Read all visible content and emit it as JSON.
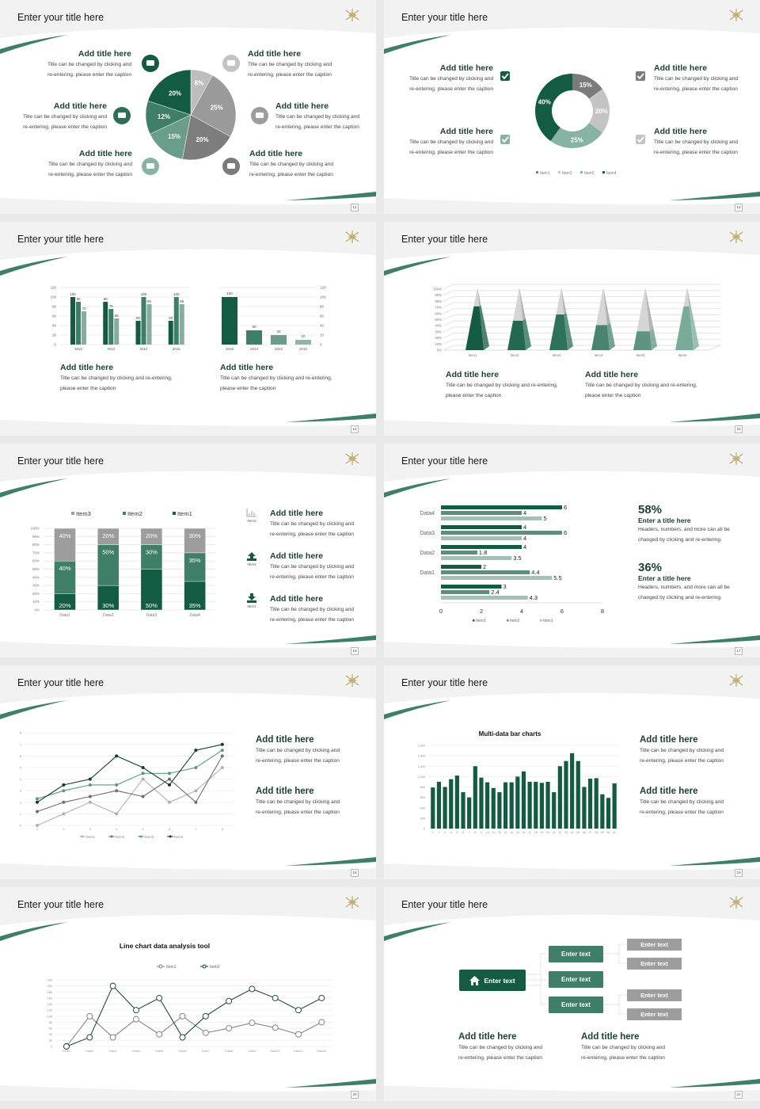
{
  "theme": {
    "dark": "#135c43",
    "mid": "#3f7f68",
    "light": "#86b3a2",
    "gray_dark": "#7b7b7b",
    "gray": "#9d9d9d",
    "gray_light": "#c4c4c4",
    "ink": "#0e3d2c"
  },
  "slides": [
    {
      "title": "Enter your title here",
      "page": "12",
      "blocks": [
        {
          "heading": "Add title here",
          "lines": [
            "Title can be changed by clicking and",
            "re-entering, please enter the caption"
          ],
          "icon": "monitor-icon"
        },
        {
          "heading": "Add title here",
          "lines": [
            "Title can be changed by clicking and",
            "re-entering, please enter the caption"
          ],
          "icon": "car-icon"
        },
        {
          "heading": "Add title here",
          "lines": [
            "Title can be changed by clicking and",
            "re-entering, please enter the caption"
          ],
          "icon": "book-icon"
        },
        {
          "heading": "Add title here",
          "lines": [
            "Title can be changed by clicking and",
            "re-entering, please enter the caption"
          ],
          "icon": "phone-icon"
        },
        {
          "heading": "Add title here",
          "lines": [
            "Title can be changed by clicking and",
            "re-entering, please enter the caption"
          ],
          "icon": "binoculars-icon"
        },
        {
          "heading": "Add title here",
          "lines": [
            "Title can be changed by clicking and",
            "re-entering, please enter the caption"
          ],
          "icon": "bicycle-icon"
        }
      ]
    },
    {
      "title": "Enter your title here",
      "page": "13",
      "blocks": [
        {
          "heading": "Add title here",
          "lines": [
            "Title can be changed by clicking and",
            "re-entering, please enter the caption"
          ],
          "icon": "checkbox-icon"
        },
        {
          "heading": "Add title here",
          "lines": [
            "Title can be changed by clicking and",
            "re-entering, please enter the caption"
          ],
          "icon": "checkbox-icon"
        },
        {
          "heading": "Add title here",
          "lines": [
            "Title can be changed by clicking and",
            "re-entering, please enter the caption"
          ],
          "icon": "checkbox-icon"
        },
        {
          "heading": "Add title here",
          "lines": [
            "Title can be changed by clicking and",
            "re-entering, please enter the caption"
          ],
          "icon": "checkbox-icon"
        }
      ]
    },
    {
      "title": "Enter your title here",
      "page": "14",
      "blocks": [
        {
          "heading": "Add title here",
          "lines": [
            "Title can be changed by clicking and re-entering,",
            "please enter the caption"
          ]
        },
        {
          "heading": "Add title here",
          "lines": [
            "Title can be changed by clicking and re-entering,",
            "please enter the caption"
          ]
        }
      ]
    },
    {
      "title": "Enter your title here",
      "page": "15",
      "blocks": [
        {
          "heading": "Add title here",
          "lines": [
            "Title can be changed by clicking and re-entering,",
            "please enter the caption"
          ]
        },
        {
          "heading": "Add title here",
          "lines": [
            "Title can be changed by clicking and re-entering,",
            "please enter the caption"
          ]
        }
      ]
    },
    {
      "title": "Enter your title here",
      "page": "16",
      "blocks": [
        {
          "heading": "Add title here",
          "lines": [
            "Title can be changed by clicking and",
            "re-entering, please enter the caption"
          ],
          "icon": "bar-chart-icon",
          "icon_label": "Item3"
        },
        {
          "heading": "Add title here",
          "lines": [
            "Title can be changed by clicking and",
            "re-entering, please enter the caption"
          ],
          "icon": "upload-icon",
          "icon_label": "Item2"
        },
        {
          "heading": "Add title here",
          "lines": [
            "Title can be changed by clicking and",
            "re-entering, please enter the caption"
          ],
          "icon": "download-icon",
          "icon_label": "Item1"
        }
      ]
    },
    {
      "title": "Enter your title here",
      "page": "17",
      "stats": [
        {
          "value": "58%",
          "heading": "Enter a title here",
          "lines": [
            "Headers, numbers, and more can all be",
            "changed by clicking and re-entering."
          ]
        },
        {
          "value": "36%",
          "heading": "Enter a title here",
          "lines": [
            "Headers, numbers, and more can all be",
            "changed by clicking and re-entering."
          ]
        }
      ]
    },
    {
      "title": "Enter your title here",
      "page": "18",
      "blocks": [
        {
          "heading": "Add title here",
          "lines": [
            "Title can be changed by clicking and",
            "re-entering, please enter the caption"
          ]
        },
        {
          "heading": "Add title here",
          "lines": [
            "Title can be changed by clicking and",
            "re-entering, please enter the caption"
          ]
        }
      ]
    },
    {
      "title": "Enter your title here",
      "page": "19",
      "blocks": [
        {
          "heading": "Add title here",
          "lines": [
            "Title can be changed by clicking and",
            "re-entering, please enter the caption"
          ]
        },
        {
          "heading": "Add title here",
          "lines": [
            "Title can be changed by clicking and",
            "re-entering, please enter the caption"
          ]
        }
      ]
    },
    {
      "title": "Enter your title here",
      "page": "20"
    },
    {
      "title": "Enter your title here",
      "page": "21",
      "flow": {
        "root": "Enter text",
        "mid": [
          "Enter text",
          "Enter text",
          "Enter text"
        ],
        "leaves": [
          "Enter text",
          "Enter text",
          "Enter text",
          "Enter text"
        ]
      },
      "blocks": [
        {
          "heading": "Add title here",
          "lines": [
            "Title can be changed by clicking and",
            "re-entering, please enter the caption"
          ]
        },
        {
          "heading": "Add title here",
          "lines": [
            "Title can be changed by clicking and",
            "re-entering, please enter the caption"
          ]
        }
      ]
    }
  ],
  "chart_data": [
    {
      "type": "pie",
      "labels": [
        "8%",
        "25%",
        "20%",
        "15%",
        "12%",
        "20%"
      ],
      "values": [
        8,
        25,
        20,
        15,
        12,
        20
      ],
      "colors": [
        "#bdbdbd",
        "#9a9a9a",
        "#7d7d7d",
        "#6a9e8a",
        "#3f7f68",
        "#135c43"
      ]
    },
    {
      "type": "pie",
      "variant": "donut",
      "legend": [
        "Item1",
        "Item2",
        "Item3",
        "Item4"
      ],
      "values": [
        15,
        20,
        25,
        40
      ],
      "labels": [
        "15%",
        "20%",
        "25%",
        "40%"
      ],
      "colors": [
        "#7b7b7b",
        "#c4c4c4",
        "#86b3a2",
        "#135c43"
      ]
    },
    {
      "type": "bar",
      "categories": [
        "2010",
        "2012",
        "2014",
        "2016"
      ],
      "series": [
        {
          "values": [
            100,
            90,
            50,
            50
          ]
        },
        {
          "values": [
            90,
            75,
            100,
            100
          ]
        },
        {
          "values": [
            70,
            55,
            85,
            85
          ]
        }
      ],
      "ylim": [
        0,
        120
      ],
      "yticks": [
        "0",
        "20",
        "40",
        "60",
        "80",
        "100",
        "120"
      ],
      "grid": true
    },
    {
      "type": "bar",
      "categories": [
        "2016",
        "2014",
        "2012",
        "2010"
      ],
      "values": [
        100,
        30,
        20,
        10
      ],
      "ylim": [
        0,
        120
      ],
      "yticks": [
        "0",
        "20",
        "40",
        "60",
        "80",
        "100",
        "120"
      ],
      "yaxis": "right",
      "grid": true
    },
    {
      "type": "bar",
      "variant": "3d-pyramid",
      "categories": [
        "Item1",
        "Item2",
        "Item3",
        "Item4",
        "Item5",
        "Item6"
      ],
      "values": [
        70,
        47,
        57,
        40,
        30,
        70
      ],
      "ylim": [
        0,
        100
      ],
      "yticks": [
        "0%",
        "10%",
        "20%",
        "30%",
        "40%",
        "50%",
        "60%",
        "70%",
        "80%",
        "90%",
        "100%"
      ]
    },
    {
      "type": "bar",
      "variant": "stacked-percent",
      "categories": [
        "Data1",
        "Data2",
        "Data3",
        "Data4"
      ],
      "series": [
        {
          "name": "Item1",
          "values": [
            20,
            30,
            50,
            35
          ],
          "labels": [
            "20%",
            "30%",
            "50%",
            "35%"
          ]
        },
        {
          "name": "Item2",
          "values": [
            40,
            50,
            30,
            35
          ],
          "labels": [
            "40%",
            "50%",
            "30%",
            "35%"
          ]
        },
        {
          "name": "Item3",
          "values": [
            40,
            20,
            20,
            30
          ],
          "labels": [
            "40%",
            "20%",
            "20%",
            "30%"
          ]
        }
      ],
      "legend": [
        "Item3",
        "Item2",
        "Item1"
      ],
      "yticks": [
        "0%",
        "10%",
        "20%",
        "30%",
        "40%",
        "50%",
        "60%",
        "70%",
        "80%",
        "90%",
        "100%"
      ],
      "legend_position": "top"
    },
    {
      "type": "bar",
      "variant": "horizontal",
      "categories": [
        "Data4",
        "Data3",
        "Data2",
        "Data1",
        ""
      ],
      "series": [
        {
          "name": "Item3",
          "values": [
            6,
            4,
            4,
            2,
            3
          ],
          "labels": [
            "6",
            "4",
            "4",
            "2",
            "3"
          ]
        },
        {
          "name": "Item2",
          "values": [
            4,
            6,
            1.8,
            4.4,
            2.4
          ],
          "labels": [
            "4",
            "6",
            "1.8",
            "4.4",
            "2.4"
          ]
        },
        {
          "name": "Item1",
          "values": [
            5,
            4,
            3.5,
            5.5,
            4.3
          ],
          "labels": [
            "5",
            "4",
            "3.5",
            "5.5",
            "4.3"
          ]
        }
      ],
      "xlim": [
        0,
        8
      ],
      "xticks": [
        "0",
        "2",
        "4",
        "6",
        "8"
      ],
      "legend_position": "bottom"
    },
    {
      "type": "line",
      "x": [
        "1",
        "2",
        "3",
        "4",
        "5",
        "6",
        "7",
        "8"
      ],
      "series": [
        {
          "name": "Item1",
          "values": [
            0,
            1,
            2,
            1,
            4,
            2,
            3,
            5
          ]
        },
        {
          "name": "Item2",
          "values": [
            1.2,
            2,
            2.5,
            3,
            2.5,
            4,
            2,
            6
          ]
        },
        {
          "name": "Item3",
          "values": [
            2.3,
            3,
            3.5,
            3.5,
            4.5,
            4.5,
            5,
            6.5
          ]
        },
        {
          "name": "Item4",
          "values": [
            2,
            3.5,
            4,
            6,
            5,
            3.5,
            6.5,
            7
          ]
        }
      ],
      "ylim": [
        0,
        8
      ],
      "yticks": [
        "0",
        "1",
        "2",
        "3",
        "4",
        "5",
        "6",
        "7",
        "8"
      ],
      "legend_position": "bottom",
      "grid": true
    },
    {
      "type": "bar",
      "title": "Multi-data bar charts",
      "categories": [
        "1",
        "2",
        "3",
        "4",
        "5",
        "6",
        "7",
        "8",
        "9",
        "10",
        "11",
        "12",
        "13",
        "14",
        "15",
        "16",
        "17",
        "18",
        "19",
        "20",
        "21",
        "22",
        "23",
        "24",
        "25",
        "26",
        "27",
        "28",
        "29",
        "30",
        "31"
      ],
      "values": [
        790,
        900,
        800,
        950,
        1020,
        700,
        600,
        1200,
        980,
        890,
        780,
        700,
        890,
        890,
        1000,
        1100,
        900,
        900,
        880,
        900,
        700,
        1200,
        1300,
        1450,
        1300,
        800,
        960,
        970,
        660,
        590,
        870
      ],
      "ylim": [
        0,
        1600
      ],
      "yticks": [
        "0",
        "200",
        "400",
        "600",
        "800",
        "1,000",
        "1,200",
        "1,400",
        "1,600"
      ],
      "grid": true
    },
    {
      "type": "line",
      "title": "Line chart data analysis tool",
      "categories": [
        "Data1",
        "Data2",
        "Data3",
        "Data4",
        "Data5",
        "Data6",
        "Data7",
        "Data8",
        "Data9",
        "Data10",
        "Data11",
        "Data12"
      ],
      "series": [
        {
          "name": "Item1",
          "values": [
            0,
            100,
            30,
            90,
            40,
            100,
            45,
            60,
            78,
            62,
            40,
            80
          ]
        },
        {
          "name": "Item2",
          "values": [
            0,
            30,
            200,
            120,
            160,
            30,
            100,
            150,
            190,
            160,
            120,
            160
          ]
        }
      ],
      "ylim": [
        0,
        220
      ],
      "yticks": [
        "0",
        "20",
        "40",
        "60",
        "80",
        "100",
        "120",
        "140",
        "160",
        "180",
        "200",
        "220"
      ],
      "legend_position": "top",
      "grid": true
    }
  ]
}
